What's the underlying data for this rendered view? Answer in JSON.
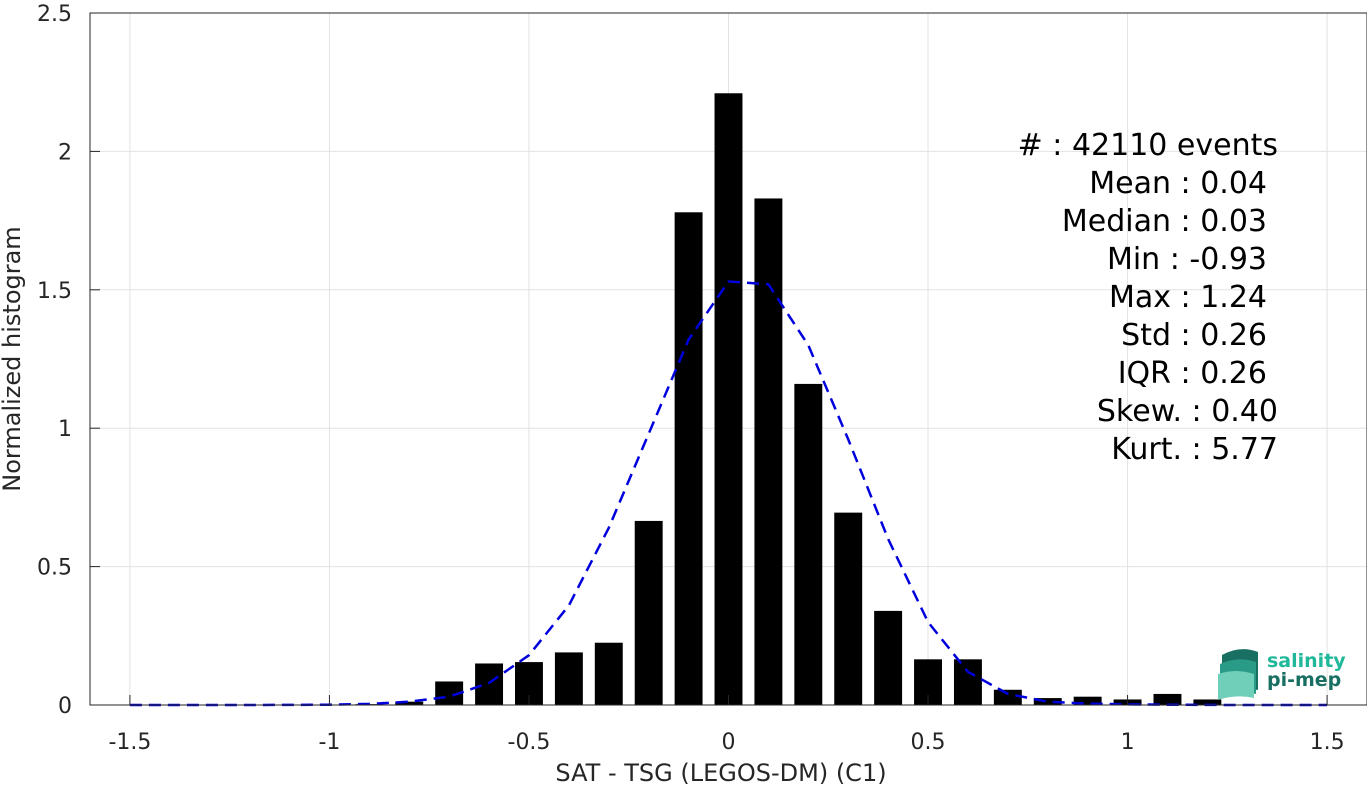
{
  "chart_data": {
    "type": "bar",
    "xlabel": "SAT - TSG (LEGOS-DM) (C1)",
    "ylabel": "Normalized histogram",
    "xlim": [
      -1.6,
      1.6
    ],
    "ylim": [
      0,
      2.5
    ],
    "grid": true,
    "x_ticks": [
      -1.5,
      -1,
      -0.5,
      0,
      0.5,
      1,
      1.5
    ],
    "x_tick_labels": [
      "-1.5",
      "-1",
      "-0.5",
      "0",
      "0.5",
      "1",
      "1.5"
    ],
    "y_ticks": [
      0,
      0.5,
      1,
      1.5,
      2,
      2.5
    ],
    "y_tick_labels": [
      "0",
      "0.5",
      "1",
      "1.5",
      "2",
      "2.5"
    ],
    "bar_width": 0.07,
    "bars": {
      "x": [
        -1.5,
        -1.4,
        -1.3,
        -1.2,
        -1.1,
        -1.0,
        -0.9,
        -0.8,
        -0.7,
        -0.6,
        -0.5,
        -0.4,
        -0.3,
        -0.2,
        -0.1,
        0.0,
        0.1,
        0.2,
        0.3,
        0.4,
        0.5,
        0.6,
        0.7,
        0.8,
        0.9,
        1.0,
        1.1,
        1.2
      ],
      "values": [
        0,
        0,
        0,
        0,
        0,
        0,
        0.003,
        0.012,
        0.085,
        0.15,
        0.155,
        0.19,
        0.225,
        0.665,
        1.78,
        2.21,
        1.83,
        1.16,
        0.695,
        0.34,
        0.165,
        0.165,
        0.055,
        0.025,
        0.03,
        0.02,
        0.04,
        0.02
      ],
      "color": "#000000"
    },
    "fit": {
      "style": "dashed",
      "color": "#0000dd",
      "x": [
        -1.5,
        -1.4,
        -1.3,
        -1.2,
        -1.1,
        -1.0,
        -0.9,
        -0.8,
        -0.7,
        -0.6,
        -0.5,
        -0.4,
        -0.3,
        -0.2,
        -0.1,
        0.0,
        0.1,
        0.2,
        0.3,
        0.4,
        0.5,
        0.6,
        0.7,
        0.8,
        0.9,
        1.0,
        1.1,
        1.2,
        1.3,
        1.4,
        1.5
      ],
      "y": [
        0,
        0,
        0,
        0,
        0.0005,
        0.001,
        0.004,
        0.012,
        0.03,
        0.08,
        0.18,
        0.36,
        0.64,
        0.98,
        1.32,
        1.53,
        1.52,
        1.3,
        0.96,
        0.6,
        0.3,
        0.12,
        0.04,
        0.012,
        0.005,
        0.002,
        0.001,
        0.0005,
        0,
        0,
        0
      ]
    }
  },
  "stats": [
    {
      "label": "#  : 42110 events"
    },
    {
      "label": "Mean : 0.04"
    },
    {
      "label": "Median : 0.03"
    },
    {
      "label": "Min : -0.93"
    },
    {
      "label": "Max : 1.24"
    },
    {
      "label": "Std : 0.26"
    },
    {
      "label": "IQR : 0.26"
    },
    {
      "label": "Skew. : 0.40"
    },
    {
      "label": "Kurt. : 5.77"
    }
  ],
  "logo": {
    "line1": "salinity",
    "line2": "pi-mep",
    "color1": "#1fb89a",
    "color2": "#1a6f63"
  }
}
